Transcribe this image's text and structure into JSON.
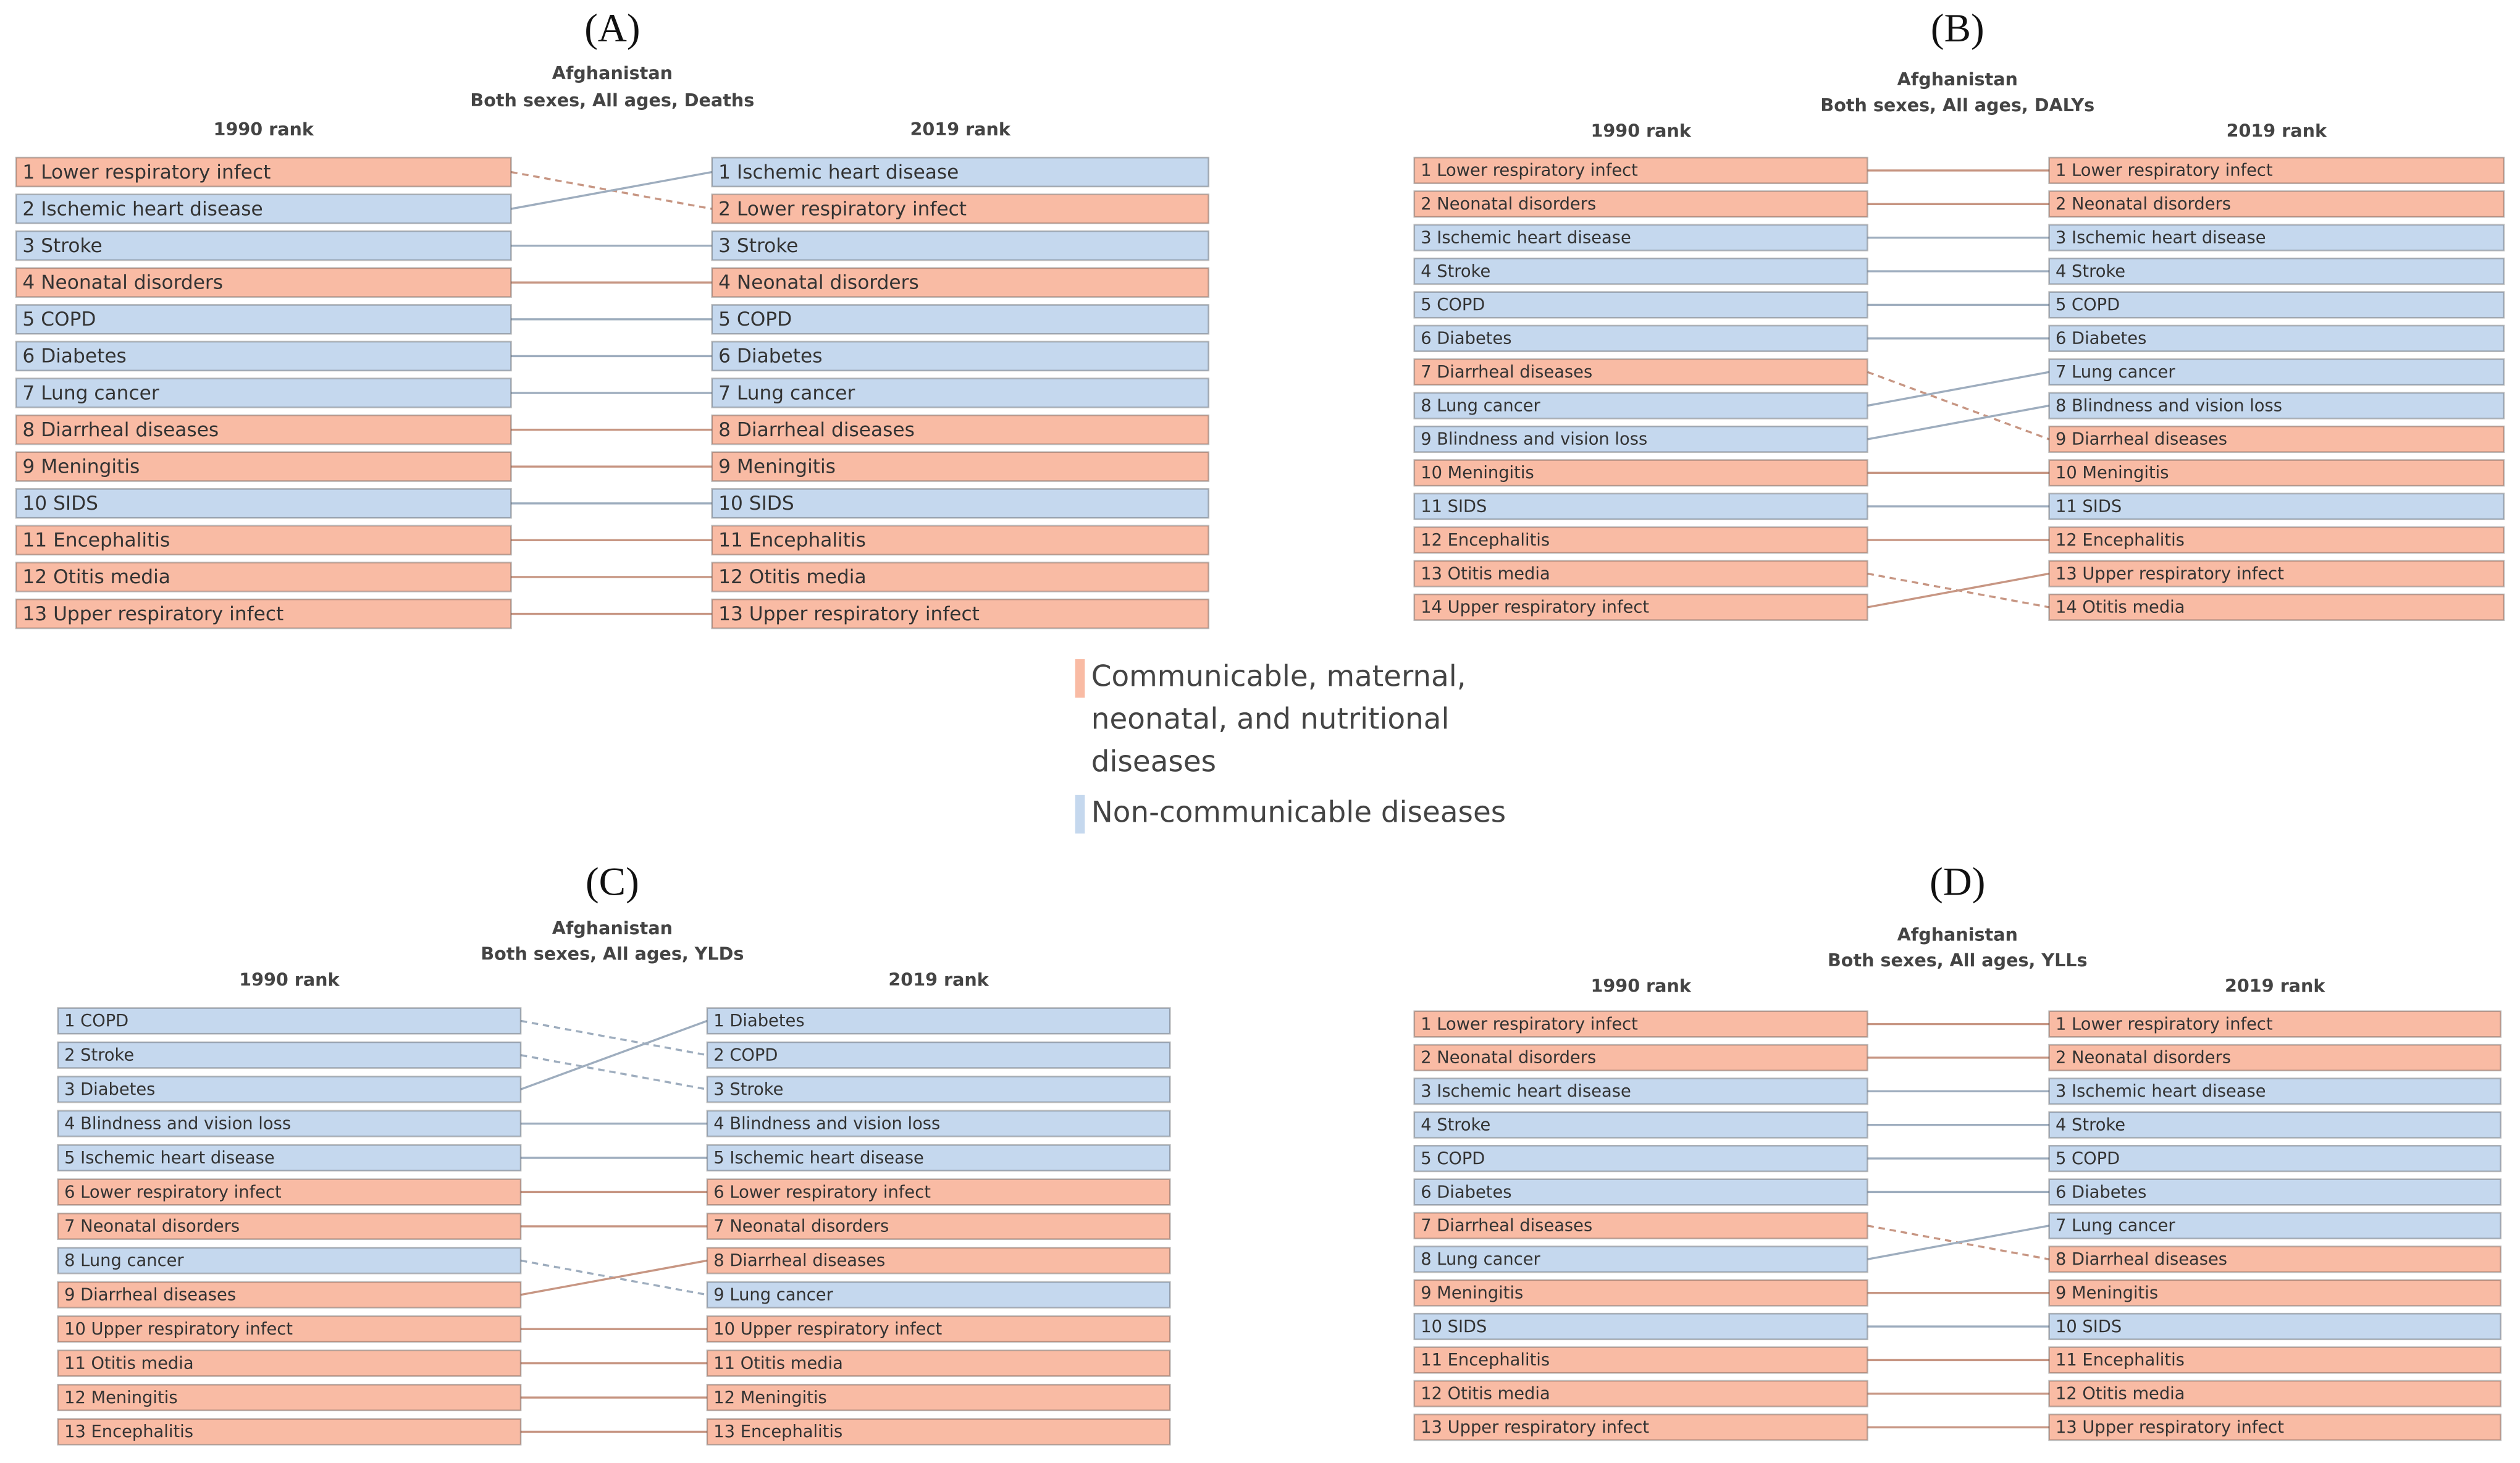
{
  "panels": [
    {
      "label": "(A)",
      "country": "Afghanistan",
      "subtitle": "Both sexes, All ages, Deaths",
      "left_header": "1990 rank",
      "right_header": "2019 rank",
      "left": [
        {
          "text": "1 Lower respiratory infect",
          "color": "#f9bba4"
        },
        {
          "text": "2 Ischemic heart disease",
          "color": "#c5d8ee"
        },
        {
          "text": "3 Stroke",
          "color": "#c5d8ee"
        },
        {
          "text": "4 Neonatal disorders",
          "color": "#f9bba4"
        },
        {
          "text": "5 COPD",
          "color": "#c5d8ee"
        },
        {
          "text": "6 Diabetes",
          "color": "#c5d8ee"
        },
        {
          "text": "7 Lung cancer",
          "color": "#c5d8ee"
        },
        {
          "text": "8 Diarrheal diseases",
          "color": "#f9bba4"
        },
        {
          "text": "9 Meningitis",
          "color": "#f9bba4"
        },
        {
          "text": "10 SIDS",
          "color": "#c5d8ee"
        },
        {
          "text": "11 Encephalitis",
          "color": "#f9bba4"
        },
        {
          "text": "12 Otitis media",
          "color": "#f9bba4"
        },
        {
          "text": "13 Upper respiratory infect",
          "color": "#f9bba4"
        }
      ],
      "right": [
        {
          "text": "1 Ischemic heart disease",
          "color": "#c5d8ee"
        },
        {
          "text": "2 Lower respiratory infect",
          "color": "#f9bba4"
        },
        {
          "text": "3 Stroke",
          "color": "#c5d8ee"
        },
        {
          "text": "4 Neonatal disorders",
          "color": "#f9bba4"
        },
        {
          "text": "5 COPD",
          "color": "#c5d8ee"
        },
        {
          "text": "6 Diabetes",
          "color": "#c5d8ee"
        },
        {
          "text": "7 Lung cancer",
          "color": "#c5d8ee"
        },
        {
          "text": "8 Diarrheal diseases",
          "color": "#f9bba4"
        },
        {
          "text": "9 Meningitis",
          "color": "#f9bba4"
        },
        {
          "text": "10 SIDS",
          "color": "#c5d8ee"
        },
        {
          "text": "11 Encephalitis",
          "color": "#f9bba4"
        },
        {
          "text": "12 Otitis media",
          "color": "#f9bba4"
        },
        {
          "text": "13 Upper respiratory infect",
          "color": "#f9bba4"
        }
      ],
      "links": [
        [
          0,
          1
        ],
        [
          1,
          0
        ],
        [
          2,
          2
        ],
        [
          3,
          3
        ],
        [
          4,
          4
        ],
        [
          5,
          5
        ],
        [
          6,
          6
        ],
        [
          7,
          7
        ],
        [
          8,
          8
        ],
        [
          9,
          9
        ],
        [
          10,
          10
        ],
        [
          11,
          11
        ],
        [
          12,
          12
        ]
      ]
    },
    {
      "label": "(B)",
      "country": "Afghanistan",
      "subtitle": "Both sexes, All ages, DALYs",
      "left_header": "1990 rank",
      "right_header": "2019 rank",
      "left": [
        {
          "text": "1 Lower respiratory infect",
          "color": "#f9bba4"
        },
        {
          "text": "2 Neonatal disorders",
          "color": "#f9bba4"
        },
        {
          "text": "3 Ischemic heart disease",
          "color": "#c5d8ee"
        },
        {
          "text": "4 Stroke",
          "color": "#c5d8ee"
        },
        {
          "text": "5 COPD",
          "color": "#c5d8ee"
        },
        {
          "text": "6 Diabetes",
          "color": "#c5d8ee"
        },
        {
          "text": "7 Diarrheal diseases",
          "color": "#f9bba4"
        },
        {
          "text": "8 Lung cancer",
          "color": "#c5d8ee"
        },
        {
          "text": "9 Blindness and vision loss",
          "color": "#c5d8ee"
        },
        {
          "text": "10 Meningitis",
          "color": "#f9bba4"
        },
        {
          "text": "11 SIDS",
          "color": "#c5d8ee"
        },
        {
          "text": "12 Encephalitis",
          "color": "#f9bba4"
        },
        {
          "text": "13 Otitis media",
          "color": "#f9bba4"
        },
        {
          "text": "14 Upper respiratory infect",
          "color": "#f9bba4"
        }
      ],
      "right": [
        {
          "text": "1 Lower respiratory infect",
          "color": "#f9bba4"
        },
        {
          "text": "2 Neonatal disorders",
          "color": "#f9bba4"
        },
        {
          "text": "3 Ischemic heart disease",
          "color": "#c5d8ee"
        },
        {
          "text": "4 Stroke",
          "color": "#c5d8ee"
        },
        {
          "text": "5 COPD",
          "color": "#c5d8ee"
        },
        {
          "text": "6 Diabetes",
          "color": "#c5d8ee"
        },
        {
          "text": "7 Lung cancer",
          "color": "#c5d8ee"
        },
        {
          "text": "8 Blindness and vision loss",
          "color": "#c5d8ee"
        },
        {
          "text": "9 Diarrheal diseases",
          "color": "#f9bba4"
        },
        {
          "text": "10 Meningitis",
          "color": "#f9bba4"
        },
        {
          "text": "11 SIDS",
          "color": "#c5d8ee"
        },
        {
          "text": "12 Encephalitis",
          "color": "#f9bba4"
        },
        {
          "text": "13 Upper respiratory infect",
          "color": "#f9bba4"
        },
        {
          "text": "14 Otitis media",
          "color": "#f9bba4"
        }
      ],
      "links": [
        [
          0,
          0
        ],
        [
          1,
          1
        ],
        [
          2,
          2
        ],
        [
          3,
          3
        ],
        [
          4,
          4
        ],
        [
          5,
          5
        ],
        [
          6,
          8
        ],
        [
          7,
          6
        ],
        [
          8,
          7
        ],
        [
          9,
          9
        ],
        [
          10,
          10
        ],
        [
          11,
          11
        ],
        [
          12,
          13
        ],
        [
          13,
          12
        ]
      ]
    },
    {
      "label": "(C)",
      "country": "Afghanistan",
      "subtitle": "Both sexes, All ages, YLDs",
      "left_header": "1990 rank",
      "right_header": "2019 rank",
      "left": [
        {
          "text": "1 COPD",
          "color": "#c5d8ee"
        },
        {
          "text": "2 Stroke",
          "color": "#c5d8ee"
        },
        {
          "text": "3 Diabetes",
          "color": "#c5d8ee"
        },
        {
          "text": "4 Blindness and vision loss",
          "color": "#c5d8ee"
        },
        {
          "text": "5 Ischemic heart disease",
          "color": "#c5d8ee"
        },
        {
          "text": "6 Lower respiratory infect",
          "color": "#f9bba4"
        },
        {
          "text": "7 Neonatal disorders",
          "color": "#f9bba4"
        },
        {
          "text": "8 Lung cancer",
          "color": "#c5d8ee"
        },
        {
          "text": "9 Diarrheal diseases",
          "color": "#f9bba4"
        },
        {
          "text": "10 Upper respiratory infect",
          "color": "#f9bba4"
        },
        {
          "text": "11 Otitis media",
          "color": "#f9bba4"
        },
        {
          "text": "12 Meningitis",
          "color": "#f9bba4"
        },
        {
          "text": "13 Encephalitis",
          "color": "#f9bba4"
        }
      ],
      "right": [
        {
          "text": "1 Diabetes",
          "color": "#c5d8ee"
        },
        {
          "text": "2 COPD",
          "color": "#c5d8ee"
        },
        {
          "text": "3 Stroke",
          "color": "#c5d8ee"
        },
        {
          "text": "4 Blindness and vision loss",
          "color": "#c5d8ee"
        },
        {
          "text": "5 Ischemic heart disease",
          "color": "#c5d8ee"
        },
        {
          "text": "6 Lower respiratory infect",
          "color": "#f9bba4"
        },
        {
          "text": "7 Neonatal disorders",
          "color": "#f9bba4"
        },
        {
          "text": "8 Diarrheal diseases",
          "color": "#f9bba4"
        },
        {
          "text": "9 Lung cancer",
          "color": "#c5d8ee"
        },
        {
          "text": "10 Upper respiratory infect",
          "color": "#f9bba4"
        },
        {
          "text": "11 Otitis media",
          "color": "#f9bba4"
        },
        {
          "text": "12 Meningitis",
          "color": "#f9bba4"
        },
        {
          "text": "13 Encephalitis",
          "color": "#f9bba4"
        }
      ],
      "links": [
        [
          0,
          1
        ],
        [
          1,
          2
        ],
        [
          2,
          0
        ],
        [
          3,
          3
        ],
        [
          4,
          4
        ],
        [
          5,
          5
        ],
        [
          6,
          6
        ],
        [
          7,
          8
        ],
        [
          8,
          7
        ],
        [
          9,
          9
        ],
        [
          10,
          10
        ],
        [
          11,
          11
        ],
        [
          12,
          12
        ]
      ]
    },
    {
      "label": "(D)",
      "country": "Afghanistan",
      "subtitle": "Both sexes, All ages, YLLs",
      "left_header": "1990 rank",
      "right_header": "2019 rank",
      "left": [
        {
          "text": "1 Lower respiratory infect",
          "color": "#f9bba4"
        },
        {
          "text": "2 Neonatal disorders",
          "color": "#f9bba4"
        },
        {
          "text": "3 Ischemic heart disease",
          "color": "#c5d8ee"
        },
        {
          "text": "4 Stroke",
          "color": "#c5d8ee"
        },
        {
          "text": "5 COPD",
          "color": "#c5d8ee"
        },
        {
          "text": "6 Diabetes",
          "color": "#c5d8ee"
        },
        {
          "text": "7 Diarrheal diseases",
          "color": "#f9bba4"
        },
        {
          "text": "8 Lung cancer",
          "color": "#c5d8ee"
        },
        {
          "text": "9 Meningitis",
          "color": "#f9bba4"
        },
        {
          "text": "10 SIDS",
          "color": "#c5d8ee"
        },
        {
          "text": "11 Encephalitis",
          "color": "#f9bba4"
        },
        {
          "text": "12 Otitis media",
          "color": "#f9bba4"
        },
        {
          "text": "13 Upper respiratory infect",
          "color": "#f9bba4"
        }
      ],
      "right": [
        {
          "text": "1 Lower respiratory infect",
          "color": "#f9bba4"
        },
        {
          "text": "2 Neonatal disorders",
          "color": "#f9bba4"
        },
        {
          "text": "3 Ischemic heart disease",
          "color": "#c5d8ee"
        },
        {
          "text": "4 Stroke",
          "color": "#c5d8ee"
        },
        {
          "text": "5 COPD",
          "color": "#c5d8ee"
        },
        {
          "text": "6 Diabetes",
          "color": "#c5d8ee"
        },
        {
          "text": "7 Lung cancer",
          "color": "#c5d8ee"
        },
        {
          "text": "8 Diarrheal diseases",
          "color": "#f9bba4"
        },
        {
          "text": "9 Meningitis",
          "color": "#f9bba4"
        },
        {
          "text": "10 SIDS",
          "color": "#c5d8ee"
        },
        {
          "text": "11 Encephalitis",
          "color": "#f9bba4"
        },
        {
          "text": "12 Otitis media",
          "color": "#f9bba4"
        },
        {
          "text": "13 Upper respiratory infect",
          "color": "#f9bba4"
        }
      ],
      "links": [
        [
          0,
          0
        ],
        [
          1,
          1
        ],
        [
          2,
          2
        ],
        [
          3,
          3
        ],
        [
          4,
          4
        ],
        [
          5,
          5
        ],
        [
          6,
          7
        ],
        [
          7,
          6
        ],
        [
          8,
          8
        ],
        [
          9,
          9
        ],
        [
          10,
          10
        ],
        [
          11,
          11
        ],
        [
          12,
          12
        ]
      ]
    }
  ],
  "legend": [
    {
      "lines": [
        "Communicable, maternal,",
        "neonatal, and nutritional",
        "diseases"
      ],
      "color": "#f9bba4"
    },
    {
      "lines": [
        "Non-communicable diseases"
      ],
      "color": "#c5d8ee"
    }
  ]
}
